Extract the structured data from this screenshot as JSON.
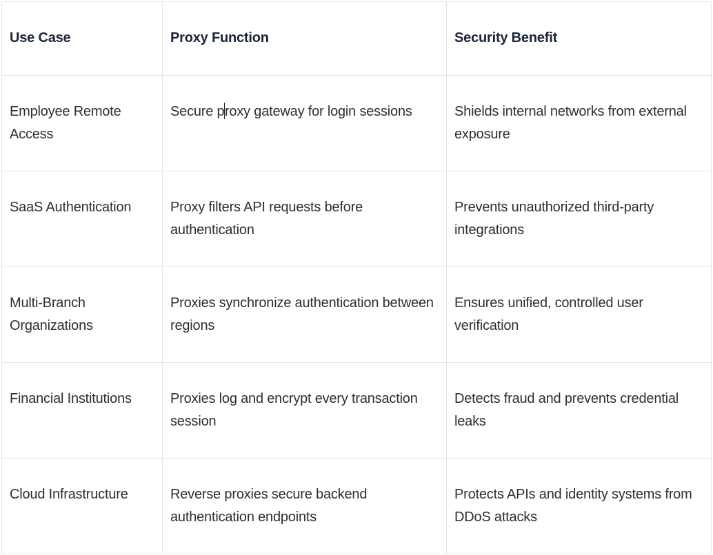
{
  "colors": {
    "background": "#ffffff",
    "border": "#e5e5e6",
    "header_text": "#1a2438",
    "body_text": "#2e2e2e",
    "text_cursor": "#1c1c1c"
  },
  "table": {
    "columns": [
      "Use Case",
      "Proxy Function",
      "Security Benefit"
    ],
    "rows": [
      {
        "use_case": "Employee Remote Access",
        "proxy_function": "Secure proxy gateway for login sessions",
        "proxy_function_before_caret": "Secure p",
        "proxy_function_after_caret": "roxy gateway for login sessions",
        "security_benefit": "Shields internal networks from external exposure"
      },
      {
        "use_case": "SaaS Authentication",
        "proxy_function": "Proxy filters API requests before authentication",
        "security_benefit": "Prevents unauthorized third-party integrations"
      },
      {
        "use_case": "Multi-Branch Organizations",
        "proxy_function": "Proxies synchronize authentication between regions",
        "security_benefit": "Ensures unified, controlled user verification"
      },
      {
        "use_case": "Financial Institutions",
        "proxy_function": "Proxies log and encrypt every transaction session",
        "security_benefit": "Detects fraud and prevents credential leaks"
      },
      {
        "use_case": "Cloud Infrastructure",
        "proxy_function": "Reverse proxies secure backend authentication endpoints",
        "security_benefit": "Protects APIs and identity systems from DDoS attacks"
      }
    ]
  }
}
